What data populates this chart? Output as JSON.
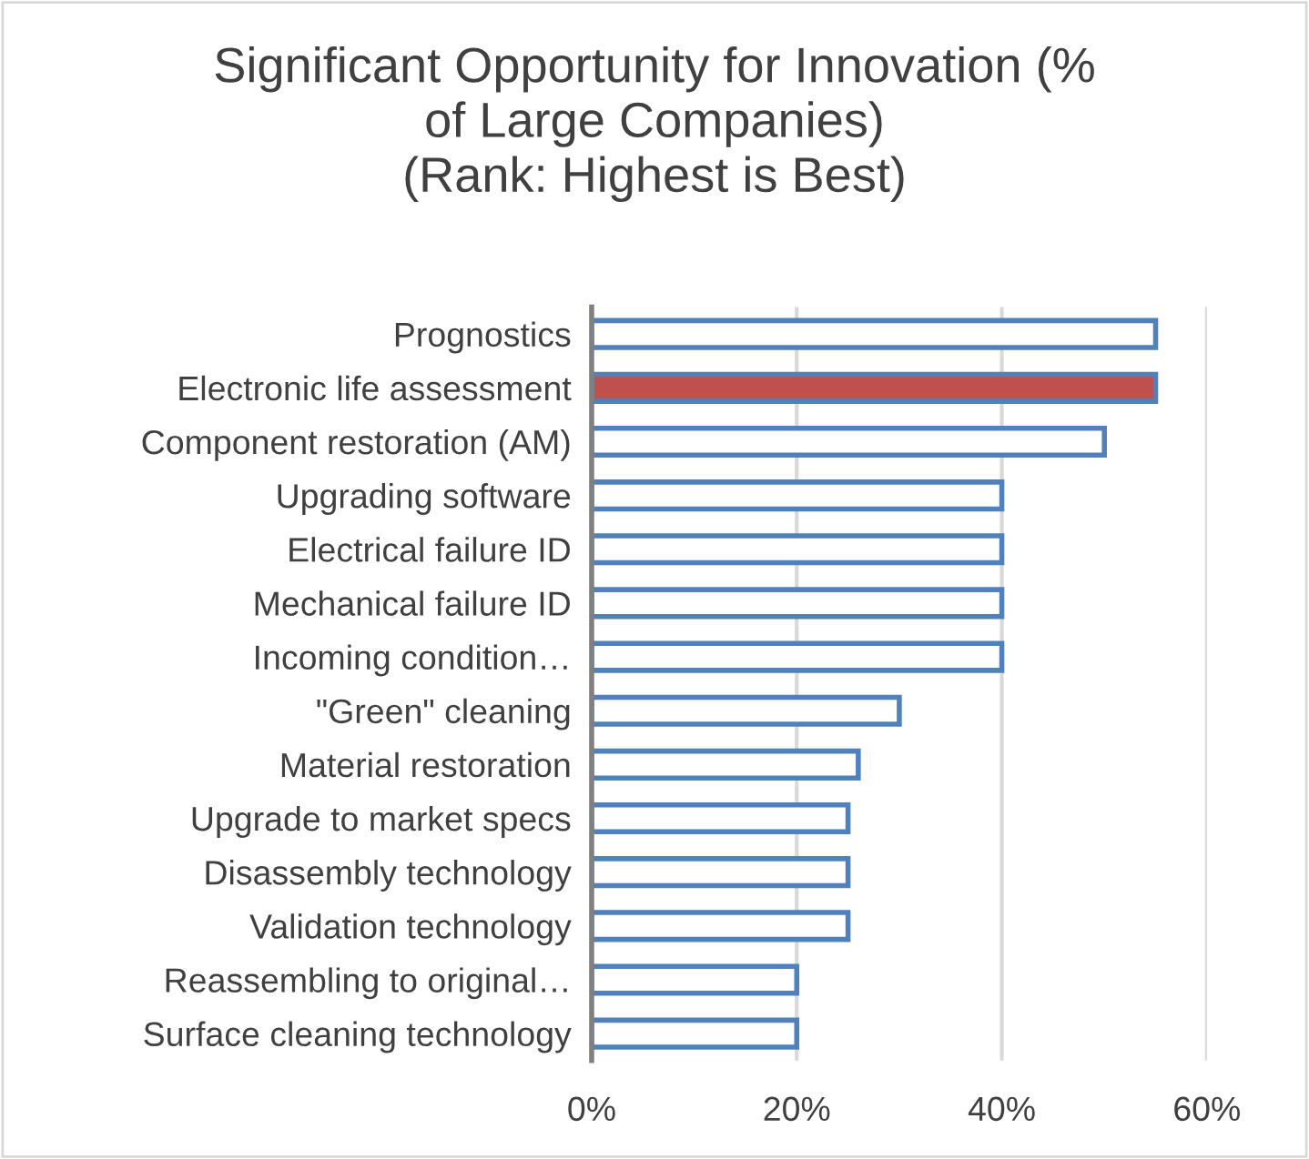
{
  "chart_data": {
    "type": "bar",
    "orientation": "horizontal",
    "title": "Significant Opportunity for Innovation (%\nof Large Companies)\n(Rank: Highest is Best)",
    "categories": [
      "Prognostics",
      "Electronic life assessment",
      "Component restoration (AM)",
      "Upgrading software",
      "Electrical failure ID",
      "Mechanical failure ID",
      "Incoming condition…",
      "\"Green\" cleaning",
      "Material restoration",
      "Upgrade to market specs",
      "Disassembly technology",
      "Validation technology",
      "Reassembling to original…",
      "Surface cleaning technology"
    ],
    "values": [
      55,
      55,
      50,
      40,
      40,
      40,
      40,
      30,
      26,
      25,
      25,
      25,
      20,
      20
    ],
    "colors": [
      "#ffffff",
      "#c0504d",
      "#ffffff",
      "#ffffff",
      "#ffffff",
      "#ffffff",
      "#ffffff",
      "#ffffff",
      "#ffffff",
      "#ffffff",
      "#ffffff",
      "#ffffff",
      "#ffffff",
      "#ffffff"
    ],
    "xlim": [
      0,
      60
    ],
    "xticks": [
      {
        "value": 0,
        "label": "0%"
      },
      {
        "value": 20,
        "label": "20%"
      },
      {
        "value": 40,
        "label": "40%"
      },
      {
        "value": 60,
        "label": "60%"
      }
    ],
    "grid": "x",
    "legend": false
  }
}
